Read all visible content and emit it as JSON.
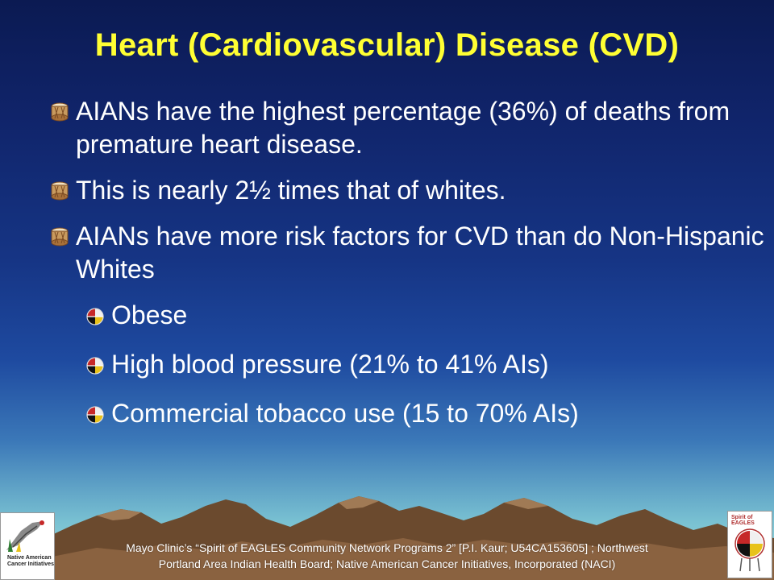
{
  "slide": {
    "title": "Heart (Cardiovascular) Disease (CVD)",
    "bullets": [
      {
        "text": "AIANs have the highest percentage (36%) of deaths from premature heart disease.",
        "icon": "drum-icon"
      },
      {
        "text": "This is nearly 2½ times that of whites.",
        "icon": "drum-icon"
      },
      {
        "text": "AIANs have more risk factors for CVD than do Non-Hispanic Whites",
        "icon": "drum-icon"
      }
    ],
    "sub_bullets": [
      {
        "text": "Obese",
        "icon": "medicine-wheel-icon"
      },
      {
        "text": "High blood pressure (21% to 41% AIs)",
        "icon": "medicine-wheel-icon"
      },
      {
        "text": "Commercial tobacco use (15 to 70% AIs)",
        "icon": "medicine-wheel-icon"
      }
    ]
  },
  "footer": {
    "line1": "Mayo Clinic’s “Spirit of EAGLES Community Network Programs 2” [P.I. Kaur;  U54CA153605] ; Northwest",
    "line2": "Portland Area Indian Health Board; Native American Cancer Initiatives, Incorporated (NACI)"
  },
  "logos": {
    "left_text": "Native American Cancer Initiatives",
    "right_text": "Spirit of EAGLES"
  },
  "colors": {
    "title": "#ffff33",
    "text": "#ffffff",
    "background_top": "#0b1a52",
    "background_bottom": "#9adbdc",
    "mountains": "#6b4a2e"
  }
}
